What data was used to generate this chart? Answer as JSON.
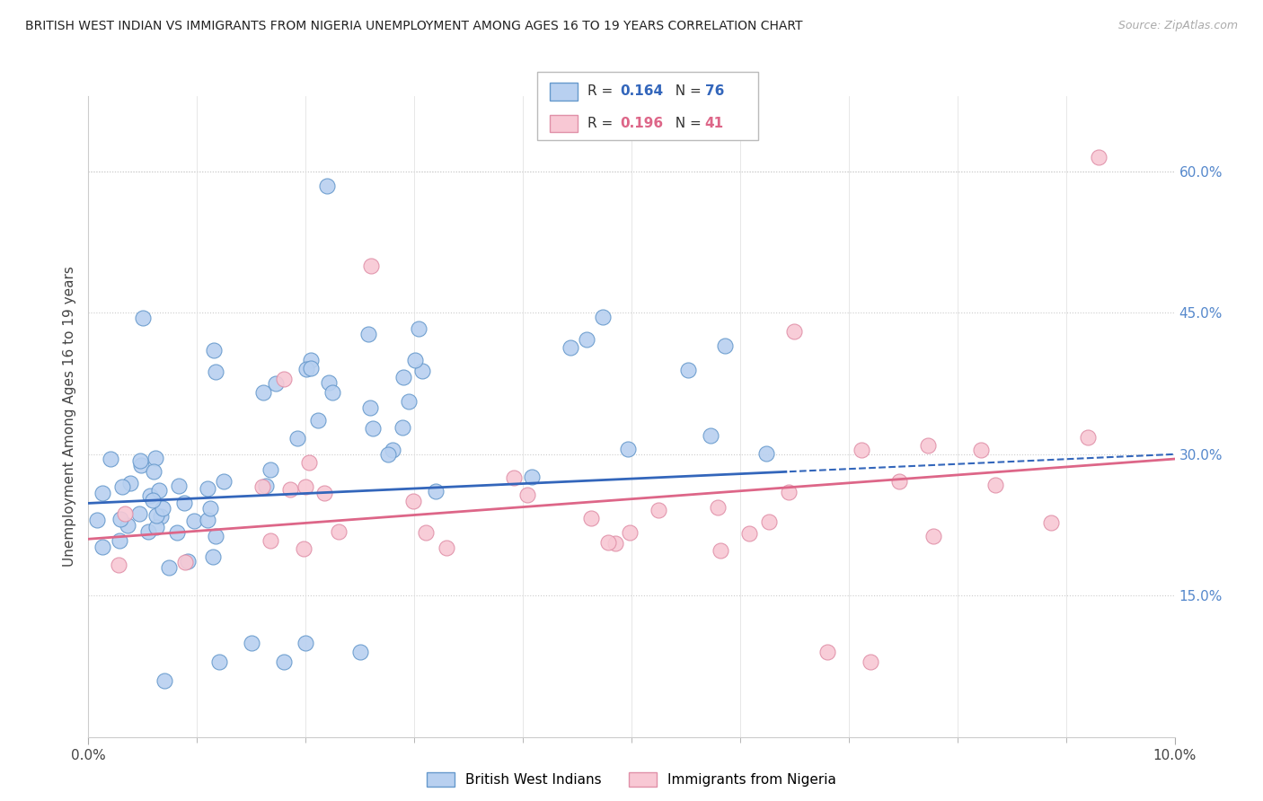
{
  "title": "BRITISH WEST INDIAN VS IMMIGRANTS FROM NIGERIA UNEMPLOYMENT AMONG AGES 16 TO 19 YEARS CORRELATION CHART",
  "source": "Source: ZipAtlas.com",
  "ylabel": "Unemployment Among Ages 16 to 19 years",
  "right_yticklabels": [
    "15.0%",
    "30.0%",
    "45.0%",
    "60.0%"
  ],
  "right_yticks": [
    0.15,
    0.3,
    0.45,
    0.6
  ],
  "legend1_label": "British West Indians",
  "legend2_label": "Immigrants from Nigeria",
  "R1": 0.164,
  "N1": 76,
  "R2": 0.196,
  "N2": 41,
  "color1_face": "#b8d0f0",
  "color1_edge": "#6699cc",
  "color2_face": "#f8c8d4",
  "color2_edge": "#e090a8",
  "trendline1_color": "#3366bb",
  "trendline2_color": "#dd6688",
  "xlim": [
    0.0,
    0.1
  ],
  "ylim": [
    0.0,
    0.68
  ],
  "blue_x": [
    0.001,
    0.002,
    0.003,
    0.003,
    0.004,
    0.004,
    0.004,
    0.005,
    0.005,
    0.005,
    0.005,
    0.006,
    0.006,
    0.006,
    0.007,
    0.007,
    0.007,
    0.007,
    0.008,
    0.008,
    0.008,
    0.009,
    0.009,
    0.009,
    0.01,
    0.01,
    0.01,
    0.01,
    0.011,
    0.011,
    0.011,
    0.012,
    0.012,
    0.013,
    0.013,
    0.014,
    0.014,
    0.015,
    0.015,
    0.016,
    0.016,
    0.017,
    0.018,
    0.018,
    0.019,
    0.02,
    0.021,
    0.022,
    0.023,
    0.024,
    0.025,
    0.026,
    0.027,
    0.028,
    0.03,
    0.031,
    0.032,
    0.033,
    0.035,
    0.036,
    0.038,
    0.04,
    0.042,
    0.043,
    0.045,
    0.047,
    0.05,
    0.052,
    0.055,
    0.06,
    0.062,
    0.065,
    0.022,
    0.01,
    0.008,
    0.015
  ],
  "blue_y": [
    0.22,
    0.21,
    0.23,
    0.2,
    0.24,
    0.22,
    0.2,
    0.24,
    0.22,
    0.21,
    0.23,
    0.25,
    0.24,
    0.22,
    0.27,
    0.26,
    0.25,
    0.24,
    0.28,
    0.27,
    0.26,
    0.29,
    0.28,
    0.27,
    0.3,
    0.29,
    0.28,
    0.27,
    0.31,
    0.3,
    0.28,
    0.32,
    0.31,
    0.33,
    0.3,
    0.34,
    0.32,
    0.34,
    0.33,
    0.35,
    0.32,
    0.34,
    0.35,
    0.33,
    0.35,
    0.36,
    0.34,
    0.36,
    0.35,
    0.37,
    0.36,
    0.35,
    0.36,
    0.37,
    0.38,
    0.36,
    0.37,
    0.38,
    0.37,
    0.38,
    0.39,
    0.4,
    0.41,
    0.42,
    0.43,
    0.43,
    0.44,
    0.43,
    0.44,
    0.43,
    0.44,
    0.45,
    0.6,
    0.45,
    0.44,
    0.1
  ],
  "pink_x": [
    0.002,
    0.003,
    0.004,
    0.005,
    0.006,
    0.006,
    0.007,
    0.008,
    0.008,
    0.009,
    0.01,
    0.011,
    0.012,
    0.013,
    0.014,
    0.015,
    0.016,
    0.017,
    0.018,
    0.02,
    0.022,
    0.024,
    0.025,
    0.026,
    0.028,
    0.03,
    0.032,
    0.035,
    0.038,
    0.042,
    0.048,
    0.055,
    0.06,
    0.065,
    0.068,
    0.07,
    0.075,
    0.08,
    0.085,
    0.09,
    0.093
  ],
  "pink_y": [
    0.21,
    0.2,
    0.22,
    0.21,
    0.22,
    0.2,
    0.23,
    0.22,
    0.2,
    0.23,
    0.22,
    0.21,
    0.23,
    0.22,
    0.24,
    0.22,
    0.21,
    0.23,
    0.22,
    0.24,
    0.23,
    0.25,
    0.24,
    0.22,
    0.25,
    0.24,
    0.26,
    0.25,
    0.27,
    0.26,
    0.27,
    0.28,
    0.29,
    0.44,
    0.28,
    0.27,
    0.29,
    0.28,
    0.27,
    0.29,
    0.62
  ]
}
